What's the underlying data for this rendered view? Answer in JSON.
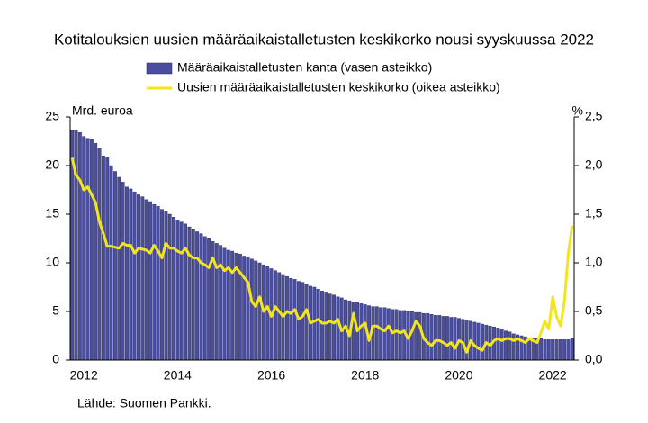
{
  "chart_data": {
    "type": "bar-line",
    "title": "Kotitalouksien uusien määräaikaistalletusten keskikorko nousi syyskuussa 2022",
    "y_label": "Mrd. euroa",
    "y2_label": "%",
    "source": "Lähde: Suomen Pankki.",
    "categories": [
      "2012",
      null,
      null,
      null,
      null,
      null,
      null,
      null,
      null,
      null,
      null,
      null,
      null,
      null,
      null,
      null,
      null,
      null,
      null,
      null,
      null,
      null,
      null,
      null,
      "2014",
      null,
      null,
      null,
      null,
      null,
      null,
      null,
      null,
      null,
      null,
      null,
      null,
      null,
      null,
      null,
      null,
      null,
      null,
      null,
      null,
      null,
      null,
      null,
      "2016",
      null,
      null,
      null,
      null,
      null,
      null,
      null,
      null,
      null,
      null,
      null,
      null,
      null,
      null,
      null,
      null,
      null,
      null,
      null,
      null,
      null,
      null,
      null,
      "2018",
      null,
      null,
      null,
      null,
      null,
      null,
      null,
      null,
      null,
      null,
      null,
      null,
      null,
      null,
      null,
      null,
      null,
      null,
      null,
      null,
      null,
      null,
      null,
      "2020",
      null,
      null,
      null,
      null,
      null,
      null,
      null,
      null,
      null,
      null,
      null,
      null,
      null,
      null,
      null,
      null,
      null,
      null,
      null,
      null,
      null,
      null,
      null,
      "2022",
      null,
      null,
      null,
      null,
      null,
      null,
      null,
      null
    ],
    "series": [
      {
        "name": "Määräaikaistalletusten kanta (vasen asteikko)",
        "type": "bar",
        "color": "#4a4e9c",
        "values": [
          23.6,
          23.6,
          23.4,
          23.0,
          22.8,
          22.7,
          22.3,
          21.8,
          21.0,
          20.8,
          20.0,
          19.4,
          18.8,
          18.3,
          17.8,
          17.6,
          17.3,
          17.0,
          16.8,
          16.5,
          16.3,
          16.0,
          15.8,
          15.5,
          15.3,
          15.0,
          14.7,
          14.4,
          14.2,
          14.0,
          13.7,
          13.5,
          13.2,
          13.0,
          12.7,
          12.5,
          12.2,
          12.0,
          11.8,
          11.5,
          11.3,
          11.2,
          11.0,
          10.9,
          10.7,
          10.6,
          10.4,
          10.2,
          10.0,
          9.8,
          9.6,
          9.4,
          9.2,
          9.0,
          8.8,
          8.6,
          8.4,
          8.3,
          8.1,
          8.0,
          7.8,
          7.6,
          7.5,
          7.3,
          7.1,
          7.0,
          6.8,
          6.7,
          6.5,
          6.4,
          6.2,
          6.1,
          6.0,
          5.9,
          5.8,
          5.7,
          5.6,
          5.5,
          5.5,
          5.4,
          5.4,
          5.3,
          5.2,
          5.2,
          5.1,
          5.1,
          5.0,
          5.0,
          4.9,
          4.9,
          4.8,
          4.8,
          4.7,
          4.6,
          4.6,
          4.5,
          4.5,
          4.4,
          4.4,
          4.3,
          4.2,
          4.1,
          4.0,
          3.9,
          3.8,
          3.7,
          3.6,
          3.5,
          3.4,
          3.3,
          3.2,
          3.0,
          2.9,
          2.7,
          2.6,
          2.5,
          2.4,
          2.3,
          2.3,
          2.2,
          2.2,
          2.1,
          2.1,
          2.1,
          2.1,
          2.1,
          2.1,
          2.1,
          2.2
        ]
      },
      {
        "name": "Uusien määräaikaistalletusten keskikorko (oikea asteikko)",
        "type": "line",
        "axis": "y2",
        "color": "#f2e51d",
        "values": [
          2.08,
          1.9,
          1.85,
          1.75,
          1.78,
          1.7,
          1.62,
          1.42,
          1.3,
          1.17,
          1.17,
          1.16,
          1.15,
          1.2,
          1.18,
          1.18,
          1.1,
          1.15,
          1.14,
          1.13,
          1.1,
          1.18,
          1.12,
          1.05,
          1.2,
          1.15,
          1.15,
          1.12,
          1.1,
          1.15,
          1.08,
          1.05,
          1.05,
          1.0,
          0.98,
          0.95,
          1.05,
          0.95,
          0.98,
          0.92,
          0.95,
          0.9,
          0.95,
          0.9,
          0.85,
          0.8,
          0.6,
          0.55,
          0.65,
          0.5,
          0.55,
          0.45,
          0.55,
          0.5,
          0.45,
          0.5,
          0.48,
          0.52,
          0.42,
          0.45,
          0.52,
          0.38,
          0.4,
          0.42,
          0.38,
          0.38,
          0.4,
          0.38,
          0.42,
          0.3,
          0.35,
          0.25,
          0.48,
          0.3,
          0.35,
          0.38,
          0.2,
          0.35,
          0.35,
          0.32,
          0.3,
          0.35,
          0.28,
          0.3,
          0.28,
          0.3,
          0.22,
          0.3,
          0.4,
          0.35,
          0.22,
          0.18,
          0.15,
          0.2,
          0.2,
          0.18,
          0.15,
          0.18,
          0.12,
          0.2,
          0.18,
          0.08,
          0.2,
          0.15,
          0.12,
          0.1,
          0.18,
          0.15,
          0.2,
          0.22,
          0.2,
          0.22,
          0.22,
          0.2,
          0.22,
          0.2,
          0.18,
          0.22,
          0.2,
          0.18,
          0.28,
          0.4,
          0.32,
          0.65,
          0.45,
          0.35,
          0.6,
          1.1,
          1.38
        ]
      }
    ],
    "ylim": [
      0,
      25
    ],
    "yticks": [
      0,
      5,
      10,
      15,
      20,
      25
    ],
    "y2lim": [
      0,
      2.5
    ],
    "y2ticks": [
      {
        "value": 0,
        "label": "0,0"
      },
      {
        "value": 0.5,
        "label": "0,5"
      },
      {
        "value": 1,
        "label": "1,0"
      },
      {
        "value": 1.5,
        "label": "1,5"
      },
      {
        "value": 2,
        "label": "2,0"
      },
      {
        "value": 2.5,
        "label": "2,5"
      }
    ]
  }
}
